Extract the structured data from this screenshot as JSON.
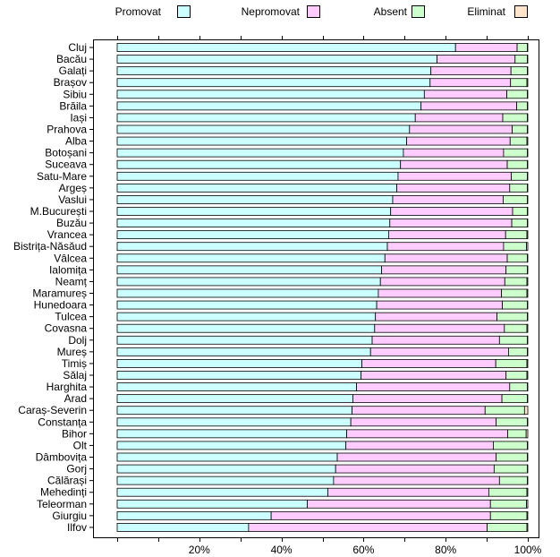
{
  "chart_data": {
    "type": "bar",
    "orientation": "horizontal",
    "stacked": true,
    "percent": true,
    "title": "",
    "xlabel": "",
    "ylabel": "",
    "xlim": [
      0,
      100
    ],
    "x_ticks": [
      20,
      40,
      60,
      80,
      100
    ],
    "x_tick_labels": [
      "20%",
      "40%",
      "60%",
      "80%",
      "100%"
    ],
    "grid": true,
    "legend_position": "top",
    "categories": [
      "Cluj",
      "Bacău",
      "Galați",
      "Brașov",
      "Sibiu",
      "Brăila",
      "Iași",
      "Prahova",
      "Alba",
      "Botoșani",
      "Suceava",
      "Satu-Mare",
      "Argeș",
      "Vaslui",
      "M.București",
      "Buzău",
      "Vrancea",
      "Bistrița-Năsăud",
      "Vâlcea",
      "Ialomița",
      "Neamț",
      "Maramureș",
      "Hunedoara",
      "Tulcea",
      "Covasna",
      "Dolj",
      "Mureș",
      "Timiș",
      "Sălaj",
      "Harghita",
      "Arad",
      "Caraș-Severin",
      "Constanța",
      "Bihor",
      "Olt",
      "Dâmbovița",
      "Gorj",
      "Călărași",
      "Mehedinți",
      "Teleorman",
      "Giurgiu",
      "Ilfov"
    ],
    "series": [
      {
        "name": "Promovat",
        "color": "#ccffff",
        "values": [
          82.4,
          77.9,
          76.4,
          76.2,
          74.8,
          74.0,
          72.6,
          71.2,
          70.5,
          69.7,
          69.0,
          68.4,
          68.1,
          67.1,
          66.6,
          66.4,
          66.1,
          65.8,
          65.2,
          64.4,
          64.1,
          63.6,
          63.2,
          62.9,
          62.7,
          62.1,
          61.7,
          59.6,
          59.4,
          58.3,
          57.4,
          57.2,
          56.9,
          55.9,
          55.7,
          53.6,
          53.2,
          52.7,
          51.3,
          46.3,
          37.5,
          32.0
        ]
      },
      {
        "name": "Nepromovat",
        "color": "#ffccff",
        "values": [
          15.0,
          19.0,
          19.5,
          19.6,
          20.1,
          23.3,
          21.3,
          25.0,
          25.2,
          24.4,
          26.0,
          27.6,
          27.5,
          26.9,
          29.7,
          29.7,
          28.5,
          28.3,
          29.8,
          30.3,
          30.3,
          30.0,
          30.6,
          29.6,
          31.6,
          31.0,
          33.6,
          32.6,
          35.3,
          37.3,
          36.3,
          32.4,
          35.4,
          39.2,
          35.9,
          38.7,
          38.6,
          40.4,
          39.2,
          44.6,
          53.4,
          58.1
        ]
      },
      {
        "name": "Absent",
        "color": "#ccffcc",
        "values": [
          2.5,
          3.0,
          4.0,
          4.0,
          5.0,
          2.6,
          6.0,
          3.7,
          4.1,
          5.8,
          4.9,
          3.9,
          4.3,
          5.9,
          3.6,
          3.8,
          5.2,
          5.6,
          4.9,
          5.2,
          5.4,
          6.2,
          6.1,
          7.4,
          5.5,
          6.8,
          4.6,
          7.6,
          5.1,
          4.3,
          6.2,
          9.6,
          7.6,
          4.5,
          8.3,
          7.6,
          8.1,
          6.8,
          9.3,
          8.8,
          8.9,
          9.7
        ]
      },
      {
        "name": "Eliminat",
        "color": "#ffe5cc",
        "values": [
          0.1,
          0.1,
          0.1,
          0.2,
          0.1,
          0.1,
          0.1,
          0.1,
          0.2,
          0.1,
          0.1,
          0.1,
          0.1,
          0.1,
          0.1,
          0.1,
          0.2,
          0.3,
          0.1,
          0.1,
          0.2,
          0.2,
          0.1,
          0.1,
          0.2,
          0.1,
          0.1,
          0.2,
          0.2,
          0.1,
          0.1,
          0.8,
          0.1,
          0.4,
          0.1,
          0.1,
          0.1,
          0.1,
          0.2,
          0.3,
          0.2,
          0.2
        ]
      }
    ]
  }
}
